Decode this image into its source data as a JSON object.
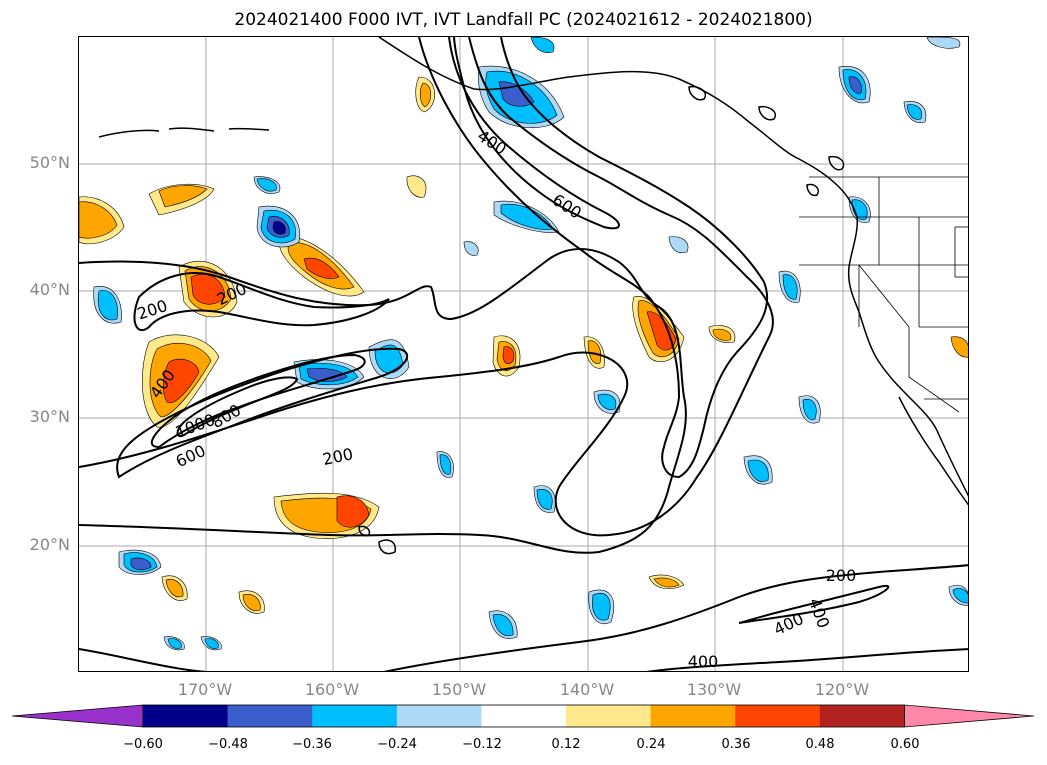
{
  "title": "2024021400 F000 IVT, IVT Landfall PC (2024021612 - 2024021800)",
  "lat_ticks": [
    "50°N",
    "40°N",
    "30°N",
    "20°N"
  ],
  "lon_ticks": [
    "170°W",
    "160°W",
    "150°W",
    "140°W",
    "130°W",
    "120°W"
  ],
  "contour_labels": [
    "400",
    "600",
    "200",
    "200",
    "400",
    "1000",
    "800",
    "600",
    "200",
    "200",
    "400",
    "400",
    "400"
  ],
  "colorbar": {
    "ticks": [
      "−0.60",
      "−0.48",
      "−0.36",
      "−0.24",
      "−0.12",
      "0.12",
      "0.24",
      "0.36",
      "0.48",
      "0.60"
    ],
    "colors": [
      "#9932cc",
      "#00008b",
      "#3a5fcd",
      "#00bfff",
      "#add8f6",
      "#ffffff",
      "#ffe98a",
      "#ffa500",
      "#ff4500",
      "#b22222",
      "#ff88aa"
    ]
  },
  "map": {
    "land_color": "#ffffff",
    "coast_color": "#000000",
    "grid_color": "#aaaaaa",
    "contour_color": "#000000"
  }
}
